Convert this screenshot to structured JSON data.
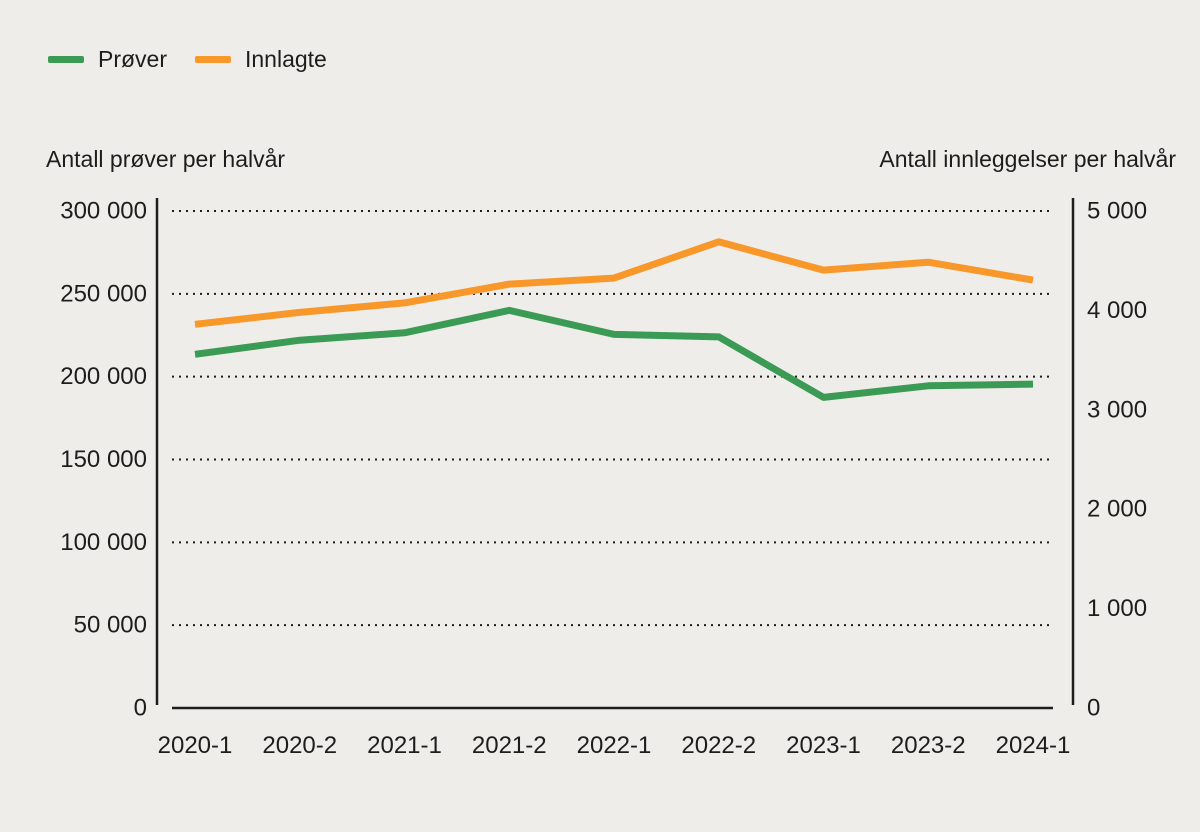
{
  "background": "#efedea",
  "text_color": "#1d1d1b",
  "chart_data": {
    "type": "line",
    "categories": [
      "2020-1",
      "2020-2",
      "2021-1",
      "2021-2",
      "2022-1",
      "2022-2",
      "2023-1",
      "2023-2",
      "2024-1"
    ],
    "series": [
      {
        "name": "Prøver",
        "axis": "left",
        "color": "#3b9b55",
        "values": [
          213500,
          222000,
          226500,
          240000,
          225500,
          224000,
          187500,
          194500,
          195500
        ]
      },
      {
        "name": "Innlagte",
        "axis": "right",
        "color": "#f8982a",
        "values": [
          3860,
          3980,
          4075,
          4265,
          4325,
          4690,
          4405,
          4485,
          4305
        ]
      }
    ],
    "left_axis": {
      "title": "Antall prøver per halvår",
      "range": [
        0,
        300000
      ],
      "tick_values": [
        0,
        50000,
        100000,
        150000,
        200000,
        250000,
        300000
      ],
      "tick_labels": [
        "0",
        "50 000",
        "100 000",
        "150 000",
        "200 000",
        "250 000",
        "300 000"
      ]
    },
    "right_axis": {
      "title": "Antall innleggelser per halvår",
      "range": [
        0,
        5000
      ],
      "tick_values": [
        0,
        1000,
        2000,
        3000,
        4000,
        5000
      ],
      "tick_labels": [
        "0",
        "1 000",
        "2 000",
        "3 000",
        "4 000",
        "5 000"
      ]
    },
    "grid": {
      "style": "dotted",
      "horizontal_at": "left-axis ticks"
    },
    "legend_position": "top-left"
  }
}
